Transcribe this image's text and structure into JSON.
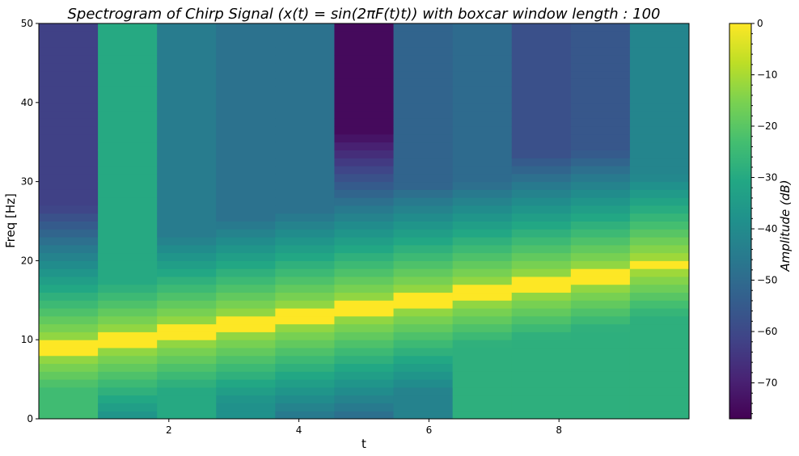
{
  "chart_data": {
    "type": "heatmap",
    "title": "Spectrogram of Chirp Signal (x(t) = sin(2πF(t)t)) with boxcar window length : 100",
    "xlabel": "t",
    "ylabel": "Freq [Hz]",
    "colorbar_label": "Amplitude (dB)",
    "colormap": "viridis",
    "xlim": [
      0,
      10
    ],
    "ylim": [
      0,
      50
    ],
    "clim": [
      -77,
      0
    ],
    "x_ticks": [
      2,
      4,
      6,
      8
    ],
    "y_ticks": [
      0,
      10,
      20,
      30,
      40,
      50
    ],
    "colorbar_ticks": [
      0,
      -10,
      -20,
      -30,
      -40,
      -50,
      -60,
      -70
    ],
    "time_bins": [
      0.45,
      1.35,
      2.25,
      3.15,
      4.05,
      4.95,
      5.85,
      6.75,
      7.65,
      8.55,
      9.45
    ],
    "freq_bin_width": 1,
    "peak_freq_hz": [
      9,
      10,
      11,
      12,
      13,
      14,
      15,
      16,
      17,
      18,
      19.5
    ],
    "background_db_high_freq": [
      -62,
      -30,
      -45,
      -48,
      -48,
      -75,
      -52,
      -50,
      -58,
      -56,
      -42
    ],
    "background_db_low_freq": [
      -24,
      -40,
      -30,
      -38,
      -52,
      -62,
      -43,
      -28,
      -28,
      -28,
      -28
    ]
  }
}
